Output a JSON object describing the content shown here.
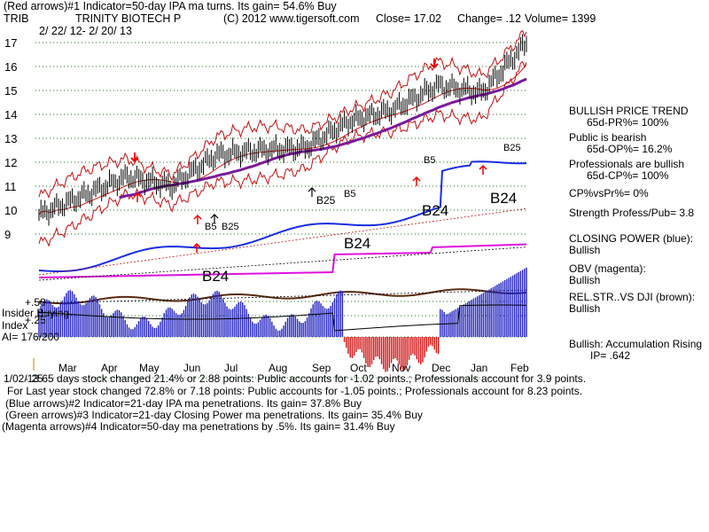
{
  "header": {
    "indicator1": "(Red arrows)#1 Indicator=50-day IPA ma turns. Its gain= 54.6% Buy",
    "ticker": "TRIB",
    "company": "TRINITY BIOTECH P",
    "copyright": "(C) 2012 www.tigersoft.com",
    "close": "Close= 17.02",
    "change": "Change= .12",
    "volume": "Volume= 1399",
    "date_range": "2/ 22/ 12- 2/ 20/ 13"
  },
  "side_panel": {
    "trend_title": "BULLISH PRICE TREND",
    "pr": "65d-PR%= 100%",
    "public_title": "Public is bearish",
    "op": "65d-OP%= 16.2%",
    "pros_title": "Professionals are bullish",
    "cp": "65d-CP%= 100%",
    "cp_vs_pr": "CP%vsPr%= 0%",
    "strength": "Strength Profess/Pub= 3.8",
    "closing_power_title": "CLOSING POWER (blue):",
    "closing_power_value": "Bullish",
    "obv_title": "OBV (magenta):",
    "obv_value": "Bullish",
    "relstr_title": "REL.STR..VS DJI (brown):",
    "relstr_value": "Bullish",
    "accum": "Bullish: Accumulation Rising",
    "ip": "IP= .642"
  },
  "left_labels": {
    "insider": "Insider Buying",
    "index": "Index",
    "ai": "AI= 176/200",
    "accum_axis": [
      "+.50",
      "+.25",
      "-.25"
    ]
  },
  "footer": {
    "line1": "1/02/13 65 days stock changed 21.4% or 2.88 points: Public accounts for -1.02 points.; Professionals account for 3.9 points.",
    "line2": "For Last year stock changed 72.8% or 7.18 points: Public accounts for -1.05 points.; Professionals account for 8.23 points.",
    "line3": "(Blue arrows)#2 Indicator=21-day IPA ma penetrations. Its gain= 37.8% Buy",
    "line4": "(Green arrows)#3 Indicator=21-day Closing Power ma penetrations. Its gain= 35.4% Buy",
    "line5": "(Magenta arrows)#4 Indicator=50-day ma penetrations by .5%. Its gain= 31.4% Buy"
  },
  "chart_data": {
    "type": "line",
    "title": "TRINITY BIOTECH P",
    "x": [
      "Mar",
      "Apr",
      "May",
      "Jun",
      "Jul",
      "Aug",
      "Sep",
      "Oct",
      "Nov",
      "Dec",
      "Jan",
      "Feb"
    ],
    "y_ticks": [
      17,
      16,
      15,
      14,
      13,
      12,
      11,
      10,
      9
    ],
    "ylim": [
      9,
      17.5
    ],
    "series": [
      {
        "name": "Price",
        "values": [
          9.8,
          10.6,
          11.4,
          11.0,
          12.3,
          12.5,
          12.6,
          13.7,
          14.2,
          15.2,
          14.9,
          17.0
        ]
      },
      {
        "name": "50-day MA",
        "values": [
          null,
          10.4,
          10.9,
          11.2,
          11.7,
          12.1,
          12.5,
          13.1,
          13.8,
          14.4,
          14.8,
          15.3
        ]
      }
    ],
    "signals": [
      "B5",
      "B25",
      "B25",
      "B5",
      "B24",
      "B24",
      "B24",
      "B24",
      "B5",
      "B25"
    ],
    "ai": "176/200",
    "ip": ".642"
  }
}
